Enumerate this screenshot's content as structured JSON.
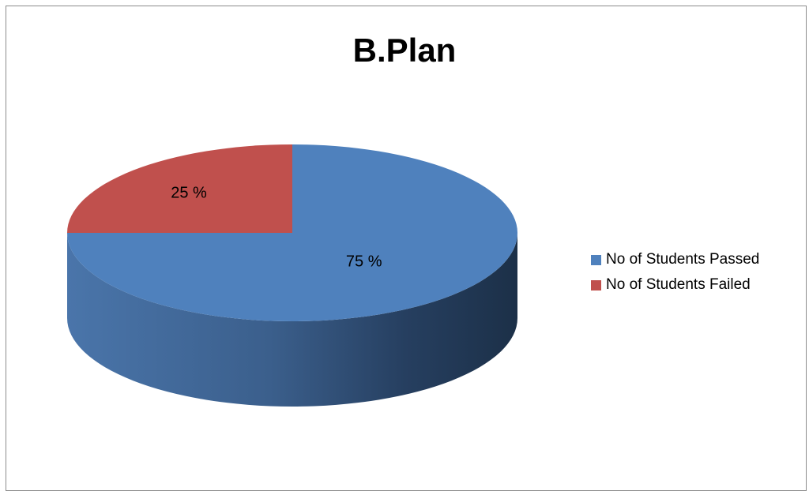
{
  "chart_data": {
    "type": "pie",
    "title": "B.Plan",
    "style": "3d",
    "legend_position": "right",
    "slices": [
      {
        "label": "No of Students Passed",
        "value": 75,
        "display": "75 %",
        "color": "#4f81bd"
      },
      {
        "label": "No of Students Failed",
        "value": 25,
        "display": "25 %",
        "color": "#c0504d"
      }
    ]
  }
}
